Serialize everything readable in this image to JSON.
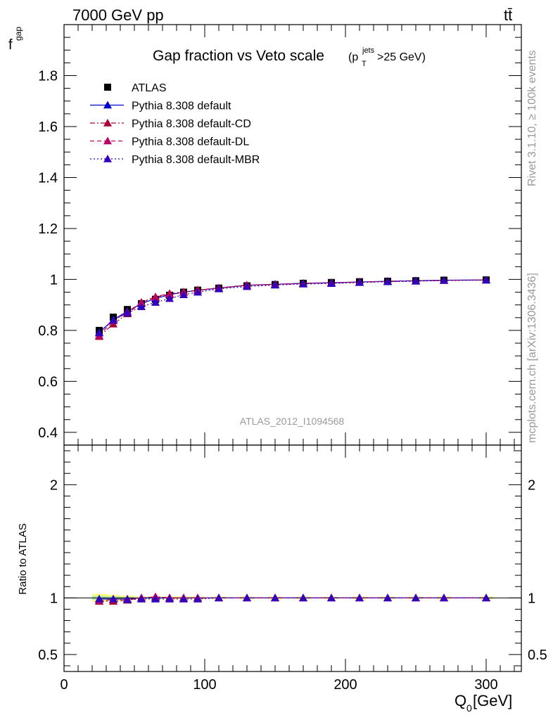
{
  "header": {
    "energy_label": "7000 GeV pp",
    "process_label": "tt̄"
  },
  "side_text": {
    "rivet": "Rivet 3.1.10, ≥ 100k events",
    "mcplots": "mcplots.cern.ch [arXiv:1306.3436]"
  },
  "chart_data": {
    "type": "line",
    "title_main": "Gap fraction vs Veto scale",
    "title_sub": "(p",
    "title_sup": "jets",
    "title_subscript": "T",
    "title_tail": ">25 GeV)",
    "watermark": "ATLAS_2012_I1094568",
    "xlabel_main": "Q",
    "xlabel_sub": "0",
    "xlabel_tail": " [GeV]",
    "ylabel_main": "f",
    "ylabel_sub": "gap",
    "ratio_ylabel": "Ratio to ATLAS",
    "xlim": [
      0,
      325
    ],
    "ylim": [
      0.35,
      2.0
    ],
    "ratio_ylim": [
      0.35,
      2.35
    ],
    "x_ticks": [
      0,
      100,
      200,
      300
    ],
    "y_ticks": [
      0.4,
      0.6,
      0.8,
      1,
      1.2,
      1.4,
      1.6,
      1.8
    ],
    "ratio_ticks": [
      0.5,
      1,
      2
    ],
    "legend_placement": "top-left",
    "x": [
      25,
      35,
      45,
      55,
      65,
      75,
      85,
      95,
      110,
      130,
      150,
      170,
      190,
      210,
      230,
      250,
      270,
      300
    ],
    "series": [
      {
        "name": "ATLAS",
        "color": "#000000",
        "style": "data",
        "values": [
          0.8,
          0.852,
          0.882,
          0.905,
          0.922,
          0.938,
          0.95,
          0.958,
          0.966,
          0.975,
          0.98,
          0.985,
          0.988,
          0.991,
          0.993,
          0.995,
          0.997,
          0.998
        ]
      },
      {
        "name": "Pythia 8.308 default",
        "color": "#0000cc",
        "style": "solid",
        "values": [
          0.792,
          0.842,
          0.875,
          0.905,
          0.925,
          0.94,
          0.95,
          0.957,
          0.966,
          0.977,
          0.981,
          0.985,
          0.987,
          0.99,
          0.993,
          0.995,
          0.997,
          0.998
        ]
      },
      {
        "name": "Pythia 8.308 default-CD",
        "color": "#aa0033",
        "style": "dashdot",
        "values": [
          0.776,
          0.825,
          0.865,
          0.91,
          0.932,
          0.945,
          0.951,
          0.958,
          0.966,
          0.977,
          0.98,
          0.984,
          0.986,
          0.989,
          0.992,
          0.994,
          0.996,
          0.998
        ]
      },
      {
        "name": "Pythia 8.308 default-DL",
        "color": "#bb0066",
        "style": "dashed",
        "values": [
          0.78,
          0.838,
          0.872,
          0.91,
          0.93,
          0.942,
          0.95,
          0.958,
          0.967,
          0.978,
          0.981,
          0.984,
          0.987,
          0.99,
          0.992,
          0.994,
          0.996,
          0.998
        ]
      },
      {
        "name": "Pythia 8.308 default-MBR",
        "color": "#3300bb",
        "style": "dotted",
        "values": [
          0.79,
          0.84,
          0.868,
          0.893,
          0.91,
          0.925,
          0.94,
          0.95,
          0.963,
          0.972,
          0.978,
          0.982,
          0.984,
          0.988,
          0.991,
          0.993,
          0.996,
          0.997
        ]
      }
    ],
    "ratio_series": [
      {
        "name": "Pythia 8.308 default",
        "values": [
          0.99,
          0.99,
          0.99,
          1.0,
          1.0,
          1.0,
          1.0,
          1.0,
          1.0,
          1.0,
          1.0,
          1.0,
          1.0,
          1.0,
          1.0,
          1.0,
          1.0,
          1.0
        ]
      },
      {
        "name": "Pythia 8.308 default-CD",
        "values": [
          0.97,
          0.97,
          0.98,
          1.0,
          1.01,
          1.0,
          1.0,
          1.0,
          1.0,
          1.0,
          1.0,
          1.0,
          1.0,
          1.0,
          1.0,
          1.0,
          1.0,
          1.0
        ]
      },
      {
        "name": "Pythia 8.308 default-DL",
        "values": [
          0.975,
          0.985,
          0.99,
          1.0,
          1.01,
          1.0,
          1.0,
          1.0,
          1.0,
          1.0,
          1.0,
          1.0,
          1.0,
          1.0,
          1.0,
          1.0,
          1.0,
          1.0
        ]
      },
      {
        "name": "Pythia 8.308 default-MBR",
        "values": [
          0.99,
          0.99,
          0.985,
          0.99,
          0.99,
          0.99,
          0.99,
          0.99,
          1.0,
          1.0,
          1.0,
          1.0,
          1.0,
          1.0,
          1.0,
          1.0,
          1.0,
          1.0
        ]
      }
    ]
  }
}
